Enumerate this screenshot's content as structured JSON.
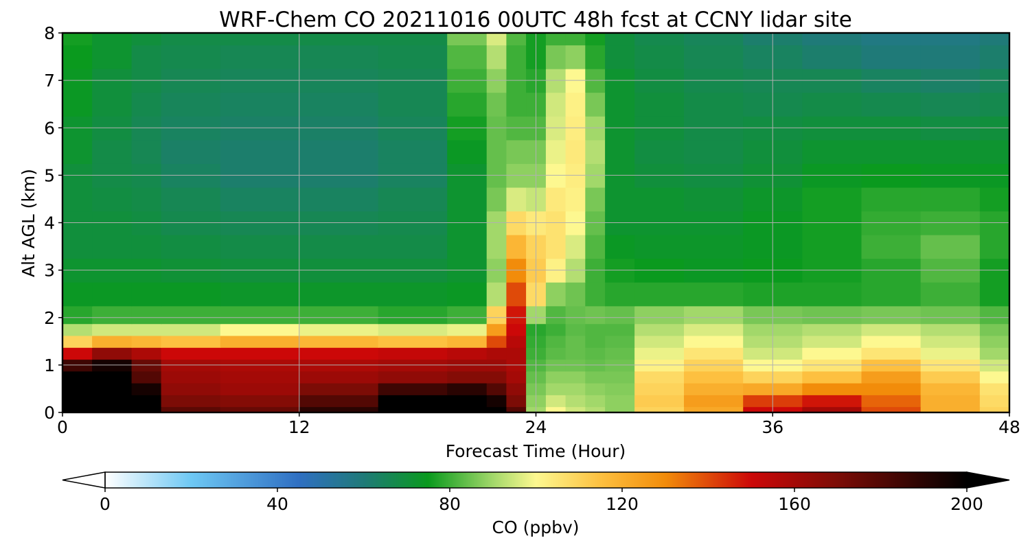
{
  "chart_data": {
    "type": "heatmap",
    "title": "WRF-Chem CO  20211016 00UTC 48h fcst at CCNY lidar site",
    "xlabel": "Forecast Time (Hour)",
    "ylabel": "Alt AGL (km)",
    "xlim": [
      0,
      48
    ],
    "ylim": [
      0,
      8
    ],
    "xticks": [
      0,
      12,
      24,
      36,
      48
    ],
    "yticks": [
      0,
      1,
      2,
      3,
      4,
      5,
      6,
      7,
      8
    ],
    "grid": true,
    "colorbar": {
      "label": "CO  (ppbv)",
      "range": [
        0,
        200
      ],
      "ticks": [
        0,
        40,
        80,
        120,
        160,
        200
      ],
      "extend": "both",
      "placement": "bottom",
      "colors": {
        "0": "#ffffff",
        "20": "#6ec8f4",
        "45": "#2f6fc2",
        "60": "#1f7a78",
        "75": "#0a9a1e",
        "90": "#a2d86a",
        "100": "#fdf890",
        "115": "#fdc040",
        "130": "#f28c0a",
        "150": "#cc0808",
        "170": "#7c0c06",
        "200": "#000000"
      }
    },
    "x": [
      0,
      3,
      4,
      6,
      10,
      14,
      18,
      21,
      22,
      23,
      24,
      25,
      26,
      27,
      28,
      30,
      33,
      36,
      39,
      42,
      45,
      48
    ],
    "y": [
      0,
      0.25,
      0.5,
      0.75,
      1,
      1.25,
      1.5,
      1.75,
      2,
      2.5,
      3,
      3.5,
      4,
      4.5,
      5,
      5.5,
      6,
      6.5,
      7,
      7.5,
      8
    ],
    "values": [
      [
        200,
        200,
        200,
        178,
        175,
        190,
        200,
        200,
        200,
        180,
        90,
        100,
        95,
        92,
        88,
        110,
        122,
        150,
        160,
        140,
        120,
        110
      ],
      [
        200,
        200,
        200,
        170,
        168,
        180,
        200,
        200,
        195,
        170,
        88,
        95,
        92,
        90,
        88,
        112,
        125,
        142,
        148,
        136,
        120,
        108
      ],
      [
        200,
        200,
        195,
        165,
        162,
        170,
        185,
        190,
        180,
        165,
        86,
        90,
        90,
        88,
        87,
        110,
        120,
        122,
        130,
        130,
        118,
        106
      ],
      [
        200,
        200,
        180,
        162,
        160,
        162,
        165,
        168,
        168,
        160,
        84,
        88,
        88,
        86,
        86,
        108,
        115,
        110,
        115,
        125,
        112,
        100
      ],
      [
        185,
        195,
        175,
        160,
        158,
        158,
        160,
        162,
        162,
        158,
        82,
        85,
        85,
        84,
        85,
        102,
        110,
        100,
        105,
        115,
        105,
        95
      ],
      [
        150,
        165,
        158,
        150,
        150,
        150,
        152,
        155,
        158,
        158,
        80,
        83,
        84,
        83,
        84,
        98,
        105,
        95,
        100,
        105,
        98,
        90
      ],
      [
        110,
        120,
        118,
        115,
        120,
        118,
        115,
        118,
        140,
        155,
        79,
        82,
        84,
        82,
        83,
        95,
        100,
        92,
        95,
        100,
        95,
        88
      ],
      [
        92,
        95,
        95,
        95,
        100,
        98,
        96,
        98,
        125,
        150,
        78,
        80,
        83,
        82,
        82,
        92,
        96,
        90,
        92,
        95,
        92,
        86
      ],
      [
        78,
        80,
        80,
        80,
        80,
        80,
        78,
        80,
        110,
        148,
        90,
        82,
        84,
        85,
        84,
        88,
        90,
        86,
        85,
        86,
        85,
        82
      ],
      [
        74,
        74,
        74,
        74,
        73,
        73,
        73,
        74,
        92,
        140,
        108,
        88,
        85,
        80,
        78,
        78,
        78,
        77,
        77,
        78,
        80,
        76
      ],
      [
        72,
        72,
        72,
        71,
        70,
        70,
        70,
        72,
        88,
        130,
        112,
        102,
        92,
        80,
        76,
        75,
        74,
        75,
        76,
        78,
        82,
        76
      ],
      [
        70,
        70,
        70,
        69,
        68,
        68,
        68,
        72,
        90,
        118,
        110,
        106,
        96,
        82,
        74,
        73,
        73,
        74,
        76,
        80,
        84,
        78
      ],
      [
        70,
        70,
        69,
        67,
        66,
        66,
        67,
        72,
        90,
        108,
        104,
        106,
        100,
        84,
        72,
        72,
        72,
        74,
        76,
        79,
        80,
        78
      ],
      [
        70,
        69,
        68,
        66,
        64,
        64,
        66,
        72,
        86,
        96,
        94,
        104,
        102,
        86,
        72,
        72,
        71,
        73,
        76,
        78,
        78,
        76
      ],
      [
        70,
        68,
        67,
        64,
        62,
        62,
        64,
        72,
        84,
        88,
        88,
        100,
        103,
        90,
        72,
        70,
        69,
        71,
        74,
        75,
        74,
        74
      ],
      [
        72,
        68,
        66,
        63,
        62,
        62,
        64,
        74,
        84,
        86,
        86,
        98,
        104,
        92,
        72,
        69,
        68,
        70,
        72,
        72,
        72,
        72
      ],
      [
        72,
        69,
        66,
        64,
        63,
        63,
        65,
        76,
        84,
        82,
        82,
        96,
        103,
        90,
        72,
        70,
        68,
        69,
        70,
        70,
        69,
        70
      ],
      [
        74,
        70,
        67,
        65,
        64,
        64,
        66,
        78,
        85,
        80,
        80,
        95,
        102,
        86,
        72,
        70,
        68,
        67,
        68,
        67,
        66,
        67
      ],
      [
        74,
        70,
        68,
        66,
        65,
        65,
        66,
        80,
        88,
        80,
        78,
        92,
        100,
        82,
        72,
        69,
        67,
        66,
        66,
        64,
        63,
        65
      ],
      [
        75,
        72,
        68,
        67,
        66,
        66,
        67,
        82,
        92,
        80,
        76,
        86,
        88,
        78,
        70,
        68,
        66,
        64,
        62,
        60,
        60,
        62
      ],
      [
        76,
        72,
        70,
        68,
        68,
        68,
        68,
        86,
        96,
        82,
        76,
        80,
        80,
        76,
        70,
        67,
        65,
        62,
        60,
        58,
        58,
        60
      ]
    ]
  }
}
